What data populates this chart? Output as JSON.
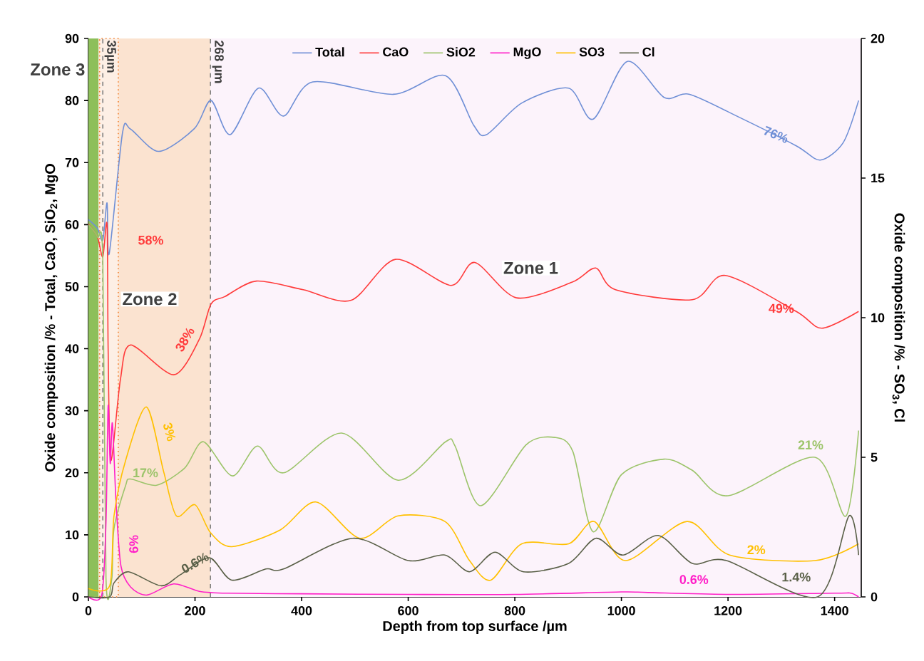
{
  "chart_data": {
    "type": "line",
    "xlabel": "Depth from top surface /µm",
    "ylabel": "Oxide composition /% - Total, CaO, SiO$_{2}$, MgO",
    "y2label": "Oxide composition /% - SO$_{3}$, Cl",
    "xlim": [
      0,
      1450
    ],
    "xticks": [
      0,
      200,
      400,
      600,
      800,
      1000,
      1200,
      1400
    ],
    "ylim": [
      0,
      90
    ],
    "yticks": [
      0,
      10,
      20,
      30,
      40,
      50,
      60,
      70,
      80,
      90
    ],
    "y2lim": [
      0,
      20
    ],
    "y2ticks": [
      0,
      5,
      10,
      15,
      20
    ],
    "grid": false,
    "legend": "top",
    "marker": "none",
    "line_style": "solid",
    "series": [
      {
        "name": "Total",
        "color": "#6f8fd6",
        "axis": "y",
        "x": [
          0,
          17,
          27,
          35,
          39,
          64,
          79,
          132,
          199,
          230,
          266,
          319,
          366,
          421,
          572,
          670,
          723,
          747,
          813,
          901,
          947,
          1011,
          1080,
          1128,
          1221,
          1328,
          1373,
          1416,
          1445
        ],
        "values": [
          60.8,
          59.4,
          57.5,
          63.5,
          55.3,
          74.8,
          75.4,
          71.8,
          75.5,
          80,
          74.5,
          82,
          77.5,
          83,
          81,
          84,
          76,
          74.5,
          79.6,
          82,
          77,
          86.3,
          80.5,
          81,
          77.3,
          72.7,
          70.4,
          73.2,
          80
        ]
      },
      {
        "name": "CaO",
        "color": "#ff3b3b",
        "axis": "y",
        "x": [
          0,
          17,
          27,
          35,
          37,
          42,
          60,
          79,
          160,
          208,
          230,
          256,
          315,
          403,
          493,
          576,
          680,
          725,
          803,
          907,
          952,
          989,
          1133,
          1195,
          1328,
          1376,
          1445
        ],
        "values": [
          60.1,
          58,
          54.8,
          60,
          40,
          22,
          35,
          40.6,
          35.8,
          41.5,
          47.2,
          48.4,
          50.9,
          49.5,
          47.8,
          54.4,
          50.2,
          53.9,
          48.2,
          50.7,
          53,
          49.5,
          47.9,
          51.8,
          46,
          43.3,
          46
        ]
      },
      {
        "name": "SiO2",
        "color": "#9cc46a",
        "axis": "y",
        "x": [
          0,
          17,
          27,
          33,
          44,
          48,
          70,
          79,
          128,
          181,
          216,
          270,
          317,
          366,
          475,
          581,
          670,
          688,
          736,
          821,
          875,
          909,
          947,
          1000,
          1080,
          1133,
          1200,
          1363,
          1421,
          1445
        ],
        "values": [
          60,
          58,
          54.5,
          3,
          3,
          11,
          18,
          19,
          18,
          20.8,
          25,
          19.5,
          24.3,
          20,
          26.4,
          18.8,
          25,
          24.3,
          14.7,
          24.5,
          25.7,
          23.4,
          10.5,
          19.7,
          22.2,
          20.4,
          16.3,
          22.5,
          13,
          26.8
        ]
      },
      {
        "name": "MgO",
        "color": "#ff1fc8",
        "axis": "y",
        "x": [
          0,
          25,
          33,
          37,
          41,
          45,
          52,
          61,
          79,
          110,
          160,
          208,
          260,
          400,
          600,
          800,
          1000,
          1050,
          1200,
          1400,
          1430,
          1445
        ],
        "values": [
          0,
          0.3,
          12,
          30.8,
          21.5,
          28,
          15,
          5,
          1.6,
          0.3,
          2.1,
          0.9,
          0.6,
          0.5,
          0.4,
          0.4,
          0.8,
          0.7,
          0.4,
          0.6,
          0.6,
          0
        ]
      },
      {
        "name": "SO3",
        "color": "#ffc000",
        "axis": "y2",
        "x": [
          0,
          40,
          48,
          70,
          109,
          141,
          165,
          200,
          229,
          269,
          360,
          427,
          509,
          581,
          669,
          715,
          755,
          813,
          901,
          949,
          1008,
          1123,
          1203,
          1363,
          1445
        ],
        "values": [
          0.3,
          0.4,
          2.9,
          4.9,
          6.8,
          4.5,
          2.9,
          3.3,
          2.3,
          1.8,
          2.4,
          3.4,
          2.1,
          2.9,
          2.7,
          1.3,
          0.6,
          1.9,
          1.9,
          2.7,
          1.3,
          2.7,
          1.5,
          1.3,
          1.9
        ]
      },
      {
        "name": "Cl",
        "color": "#5a6048",
        "axis": "y2",
        "x": [
          0,
          40,
          48,
          75,
          136,
          173,
          227,
          269,
          333,
          366,
          496,
          600,
          669,
          715,
          763,
          816,
          901,
          952,
          1003,
          1069,
          1133,
          1197,
          1368,
          1427,
          1445
        ],
        "values": [
          0,
          0,
          0.5,
          0.9,
          0.4,
          0.8,
          1.4,
          0.6,
          1.0,
          1.0,
          2.1,
          1.3,
          1.5,
          0.9,
          1.6,
          0.9,
          1.2,
          2.1,
          1.5,
          2.2,
          1.2,
          1.3,
          0,
          2.9,
          1.5
        ]
      }
    ],
    "bands": [
      {
        "axis": "x",
        "from": 0,
        "to": 19,
        "label": "Zone 3",
        "color": "#8dbf5a"
      },
      {
        "axis": "x",
        "from": 19,
        "to": 229,
        "label": "Zone 2",
        "color": "#fbe3d0"
      },
      {
        "axis": "x",
        "from": 229,
        "to": 1450,
        "label": "Zone 1",
        "color": "#fcf3fb"
      },
      {
        "axis": "x",
        "from": 21,
        "to": 56,
        "color": "#f07d2a"
      }
    ],
    "ref_lines": [
      {
        "axis": "x",
        "value": 27,
        "label": "35µm",
        "color": "#7f7f7f",
        "line_style": "dashed"
      },
      {
        "axis": "x",
        "value": 229,
        "label": "268 µm",
        "color": "#7f7f7f",
        "line_style": "dashed"
      }
    ],
    "annotations": [
      "76%",
      "49%",
      "21%",
      "2%",
      "1.4%",
      "0.6%",
      "0.6%",
      "6%",
      "3%",
      "17%",
      "38%",
      "58%"
    ]
  }
}
